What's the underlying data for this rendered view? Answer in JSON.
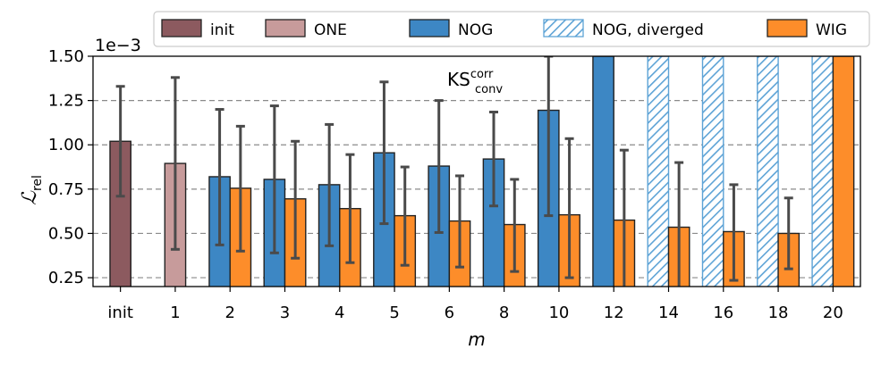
{
  "chart_data": {
    "type": "bar",
    "title": "",
    "annotation": {
      "base": "KS",
      "sup": "corr",
      "sub": "conv"
    },
    "offset_text": "1e−3",
    "xlabel": "m",
    "ylabel": {
      "base": "ℒ",
      "sub": "rel"
    },
    "ylim": [
      0.2,
      1.5
    ],
    "yticks": [
      "0.25",
      "0.50",
      "0.75",
      "1.00",
      "1.25",
      "1.50"
    ],
    "categories": [
      "init",
      "1",
      "2",
      "3",
      "4",
      "5",
      "6",
      "8",
      "10",
      "12",
      "14",
      "16",
      "18",
      "20"
    ],
    "legend": [
      {
        "key": "init",
        "label": "init",
        "color": "#8c5a5f",
        "hatch": false
      },
      {
        "key": "one",
        "label": "ONE",
        "color": "#c79b9b",
        "hatch": false
      },
      {
        "key": "nog",
        "label": "NOG",
        "color": "#3d87c4",
        "hatch": false
      },
      {
        "key": "nogdiv",
        "label": "NOG, diverged",
        "color": "#5da3d6",
        "hatch": true
      },
      {
        "key": "wig",
        "label": "WIG",
        "color": "#fd8d2a",
        "hatch": false
      }
    ],
    "bars": [
      {
        "cat": "init",
        "series": "init",
        "value": 1.02,
        "err_low": 0.71,
        "err_high": 1.33
      },
      {
        "cat": "1",
        "series": "one",
        "value": 0.895,
        "err_low": 0.41,
        "err_high": 1.38
      },
      {
        "cat": "2",
        "series": "nog",
        "value": 0.82,
        "err_low": 0.435,
        "err_high": 1.2
      },
      {
        "cat": "2",
        "series": "wig",
        "value": 0.755,
        "err_low": 0.4,
        "err_high": 1.105
      },
      {
        "cat": "3",
        "series": "nog",
        "value": 0.805,
        "err_low": 0.39,
        "err_high": 1.22
      },
      {
        "cat": "3",
        "series": "wig",
        "value": 0.695,
        "err_low": 0.36,
        "err_high": 1.02
      },
      {
        "cat": "4",
        "series": "nog",
        "value": 0.775,
        "err_low": 0.43,
        "err_high": 1.115
      },
      {
        "cat": "4",
        "series": "wig",
        "value": 0.64,
        "err_low": 0.335,
        "err_high": 0.945
      },
      {
        "cat": "5",
        "series": "nog",
        "value": 0.955,
        "err_low": 0.555,
        "err_high": 1.355
      },
      {
        "cat": "5",
        "series": "wig",
        "value": 0.6,
        "err_low": 0.32,
        "err_high": 0.875
      },
      {
        "cat": "6",
        "series": "nog",
        "value": 0.88,
        "err_low": 0.505,
        "err_high": 1.25
      },
      {
        "cat": "6",
        "series": "wig",
        "value": 0.57,
        "err_low": 0.31,
        "err_high": 0.825
      },
      {
        "cat": "8",
        "series": "nog",
        "value": 0.92,
        "err_low": 0.655,
        "err_high": 1.185
      },
      {
        "cat": "8",
        "series": "wig",
        "value": 0.55,
        "err_low": 0.285,
        "err_high": 0.805
      },
      {
        "cat": "10",
        "series": "nog",
        "value": 1.195,
        "err_low": 0.6,
        "err_high": 1.5
      },
      {
        "cat": "10",
        "series": "wig",
        "value": 0.605,
        "err_low": 0.25,
        "err_high": 1.035
      },
      {
        "cat": "12",
        "series": "nog",
        "value": 1.5,
        "err_low": 1.5,
        "err_high": 1.5
      },
      {
        "cat": "12",
        "series": "wig",
        "value": 0.575,
        "err_low": 0.195,
        "err_high": 0.97
      },
      {
        "cat": "14",
        "series": "nogdiv",
        "value": 1.5,
        "err_low": 1.5,
        "err_high": 1.5
      },
      {
        "cat": "14",
        "series": "wig",
        "value": 0.535,
        "err_low": 0.175,
        "err_high": 0.9
      },
      {
        "cat": "16",
        "series": "nogdiv",
        "value": 1.5,
        "err_low": 1.5,
        "err_high": 1.5
      },
      {
        "cat": "16",
        "series": "wig",
        "value": 0.51,
        "err_low": 0.235,
        "err_high": 0.775
      },
      {
        "cat": "18",
        "series": "nogdiv",
        "value": 1.5,
        "err_low": 1.5,
        "err_high": 1.5
      },
      {
        "cat": "18",
        "series": "wig",
        "value": 0.5,
        "err_low": 0.3,
        "err_high": 0.7
      },
      {
        "cat": "20",
        "series": "nogdiv",
        "value": 1.5,
        "err_low": 1.5,
        "err_high": 1.5
      },
      {
        "cat": "20",
        "series": "wig",
        "value": 1.5,
        "err_low": 1.5,
        "err_high": 1.5
      }
    ]
  }
}
